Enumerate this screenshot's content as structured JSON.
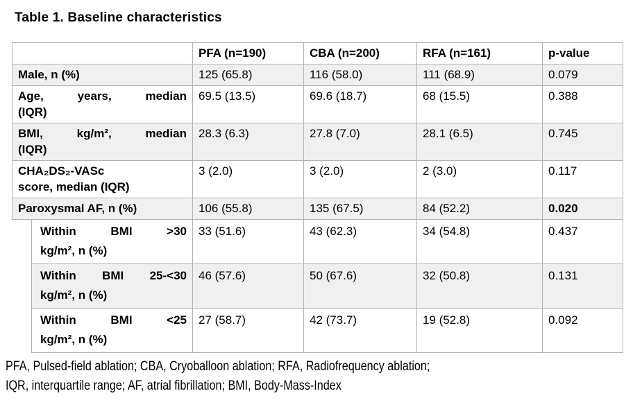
{
  "title": "Table 1. Baseline characteristics",
  "table": {
    "columns": [
      "",
      "PFA (n=190)",
      "CBA (n=200)",
      "RFA (n=161)",
      "p-value"
    ],
    "rows": [
      {
        "label_lines": [
          "Male, n (%)"
        ],
        "indent": false,
        "shaded": true,
        "p_bold": false,
        "values": [
          "125 (65.8)",
          "116 (58.0)",
          "111 (68.9)",
          "0.079"
        ]
      },
      {
        "label_lines": [
          "Age, years, median",
          "(IQR)"
        ],
        "indent": false,
        "shaded": false,
        "p_bold": false,
        "values": [
          "69.5 (13.5)",
          "69.6 (18.7)",
          "68 (15.5)",
          "0.388"
        ]
      },
      {
        "label_lines": [
          "BMI, kg/m², median",
          "(IQR)"
        ],
        "indent": false,
        "shaded": true,
        "p_bold": false,
        "values": [
          "28.3 (6.3)",
          "27.8 (7.0)",
          "28.1 (6.5)",
          "0.745"
        ]
      },
      {
        "label_lines": [
          "CHA₂DS₂-VASc",
          "score, median (IQR)"
        ],
        "indent": false,
        "shaded": false,
        "p_bold": false,
        "values": [
          "3 (2.0)",
          "3 (2.0)",
          "2 (3.0)",
          "0.117"
        ]
      },
      {
        "label_lines": [
          "Paroxysmal AF, n (%)"
        ],
        "indent": false,
        "shaded": true,
        "p_bold": true,
        "values": [
          "106 (55.8)",
          "135 (67.5)",
          "84 (52.2)",
          "0.020"
        ]
      },
      {
        "label_lines": [
          "Within BMI >30",
          "kg/m², n (%)"
        ],
        "indent": true,
        "shaded": false,
        "p_bold": false,
        "values": [
          "33 (51.6)",
          "43 (62.3)",
          "34 (54.8)",
          "0.437"
        ]
      },
      {
        "label_lines": [
          "Within BMI 25-<30",
          "kg/m², n (%)"
        ],
        "indent": true,
        "shaded": true,
        "p_bold": false,
        "values": [
          "46 (57.6)",
          "50 (67.6)",
          "32 (50.8)",
          "0.131"
        ]
      },
      {
        "label_lines": [
          "Within BMI <25",
          "kg/m², n (%)"
        ],
        "indent": true,
        "shaded": false,
        "p_bold": false,
        "values": [
          "27 (58.7)",
          "42 (73.7)",
          "19 (52.8)",
          "0.092"
        ]
      }
    ]
  },
  "footnote_lines": [
    "PFA, Pulsed-field ablation; CBA, Cryoballoon ablation; RFA, Radiofrequency ablation;",
    "IQR, interquartile range; AF, atrial fibrillation; BMI, Body-Mass-Index"
  ],
  "colors": {
    "row_shade": "#f0f0f0",
    "border": "#b3b3b3",
    "text": "#000000"
  }
}
